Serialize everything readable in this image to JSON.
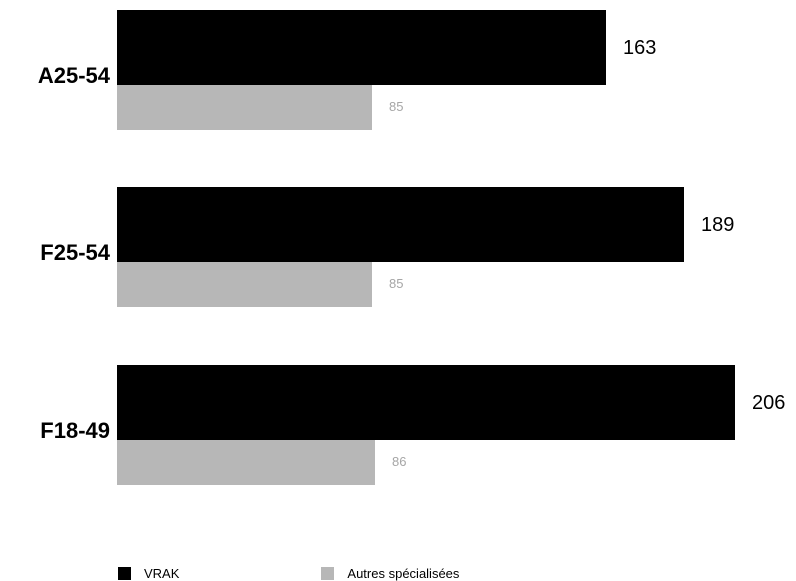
{
  "chart_data": {
    "type": "bar",
    "orientation": "horizontal",
    "categories": [
      "A25-54",
      "F25-54",
      "F18-49"
    ],
    "series": [
      {
        "name": "VRAK",
        "values": [
          163,
          189,
          206
        ],
        "color": "#000000",
        "label_color": "#000000"
      },
      {
        "name": "Autres spécialisées",
        "values": [
          85,
          85,
          86
        ],
        "color": "#b7b7b7",
        "label_color": "#a6a6a6"
      }
    ],
    "xlim": [
      0,
      206
    ],
    "grid": false,
    "legend": "bottom-left"
  }
}
